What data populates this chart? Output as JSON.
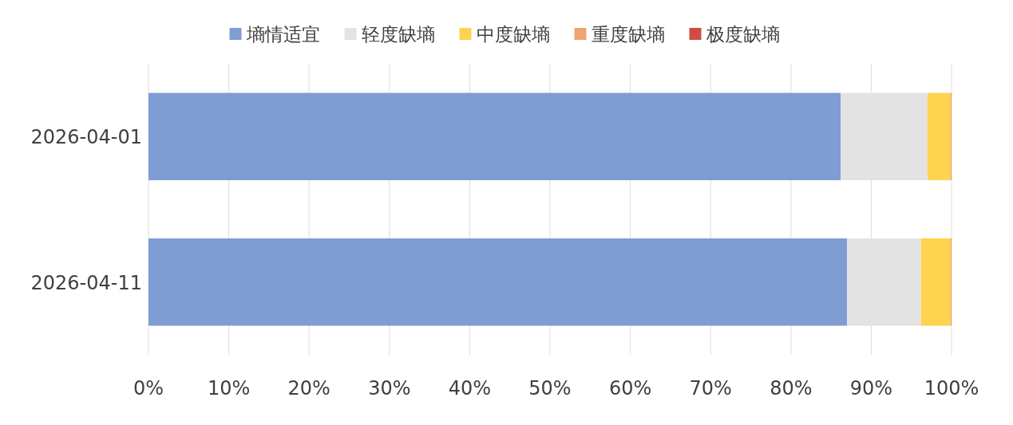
{
  "chart_data": {
    "type": "bar",
    "orientation": "horizontal",
    "stacked": true,
    "categories": [
      "2026-04-01",
      "2026-04-11"
    ],
    "series": [
      {
        "name": "墒情适宜",
        "color": "#7f9dd3",
        "values": [
          86.2,
          87.0
        ]
      },
      {
        "name": "轻度缺墒",
        "color": "#e3e3e3",
        "values": [
          10.8,
          9.2
        ]
      },
      {
        "name": "中度缺墒",
        "color": "#fdd34f",
        "values": [
          2.9,
          3.7
        ]
      },
      {
        "name": "重度缺墒",
        "color": "#eea56f",
        "values": [
          0.1,
          0.1
        ]
      },
      {
        "name": "极度缺墒",
        "color": "#d14b45",
        "values": [
          0,
          0
        ]
      }
    ],
    "xlim": [
      0,
      100
    ],
    "xticks": [
      {
        "value": 0,
        "label": "0%"
      },
      {
        "value": 10,
        "label": "10%"
      },
      {
        "value": 20,
        "label": "20%"
      },
      {
        "value": 30,
        "label": "30%"
      },
      {
        "value": 40,
        "label": "40%"
      },
      {
        "value": 50,
        "label": "50%"
      },
      {
        "value": 60,
        "label": "60%"
      },
      {
        "value": 70,
        "label": "70%"
      },
      {
        "value": 80,
        "label": "80%"
      },
      {
        "value": 90,
        "label": "90%"
      },
      {
        "value": 100,
        "label": "100%"
      }
    ],
    "grid": "x",
    "legend": "top"
  }
}
